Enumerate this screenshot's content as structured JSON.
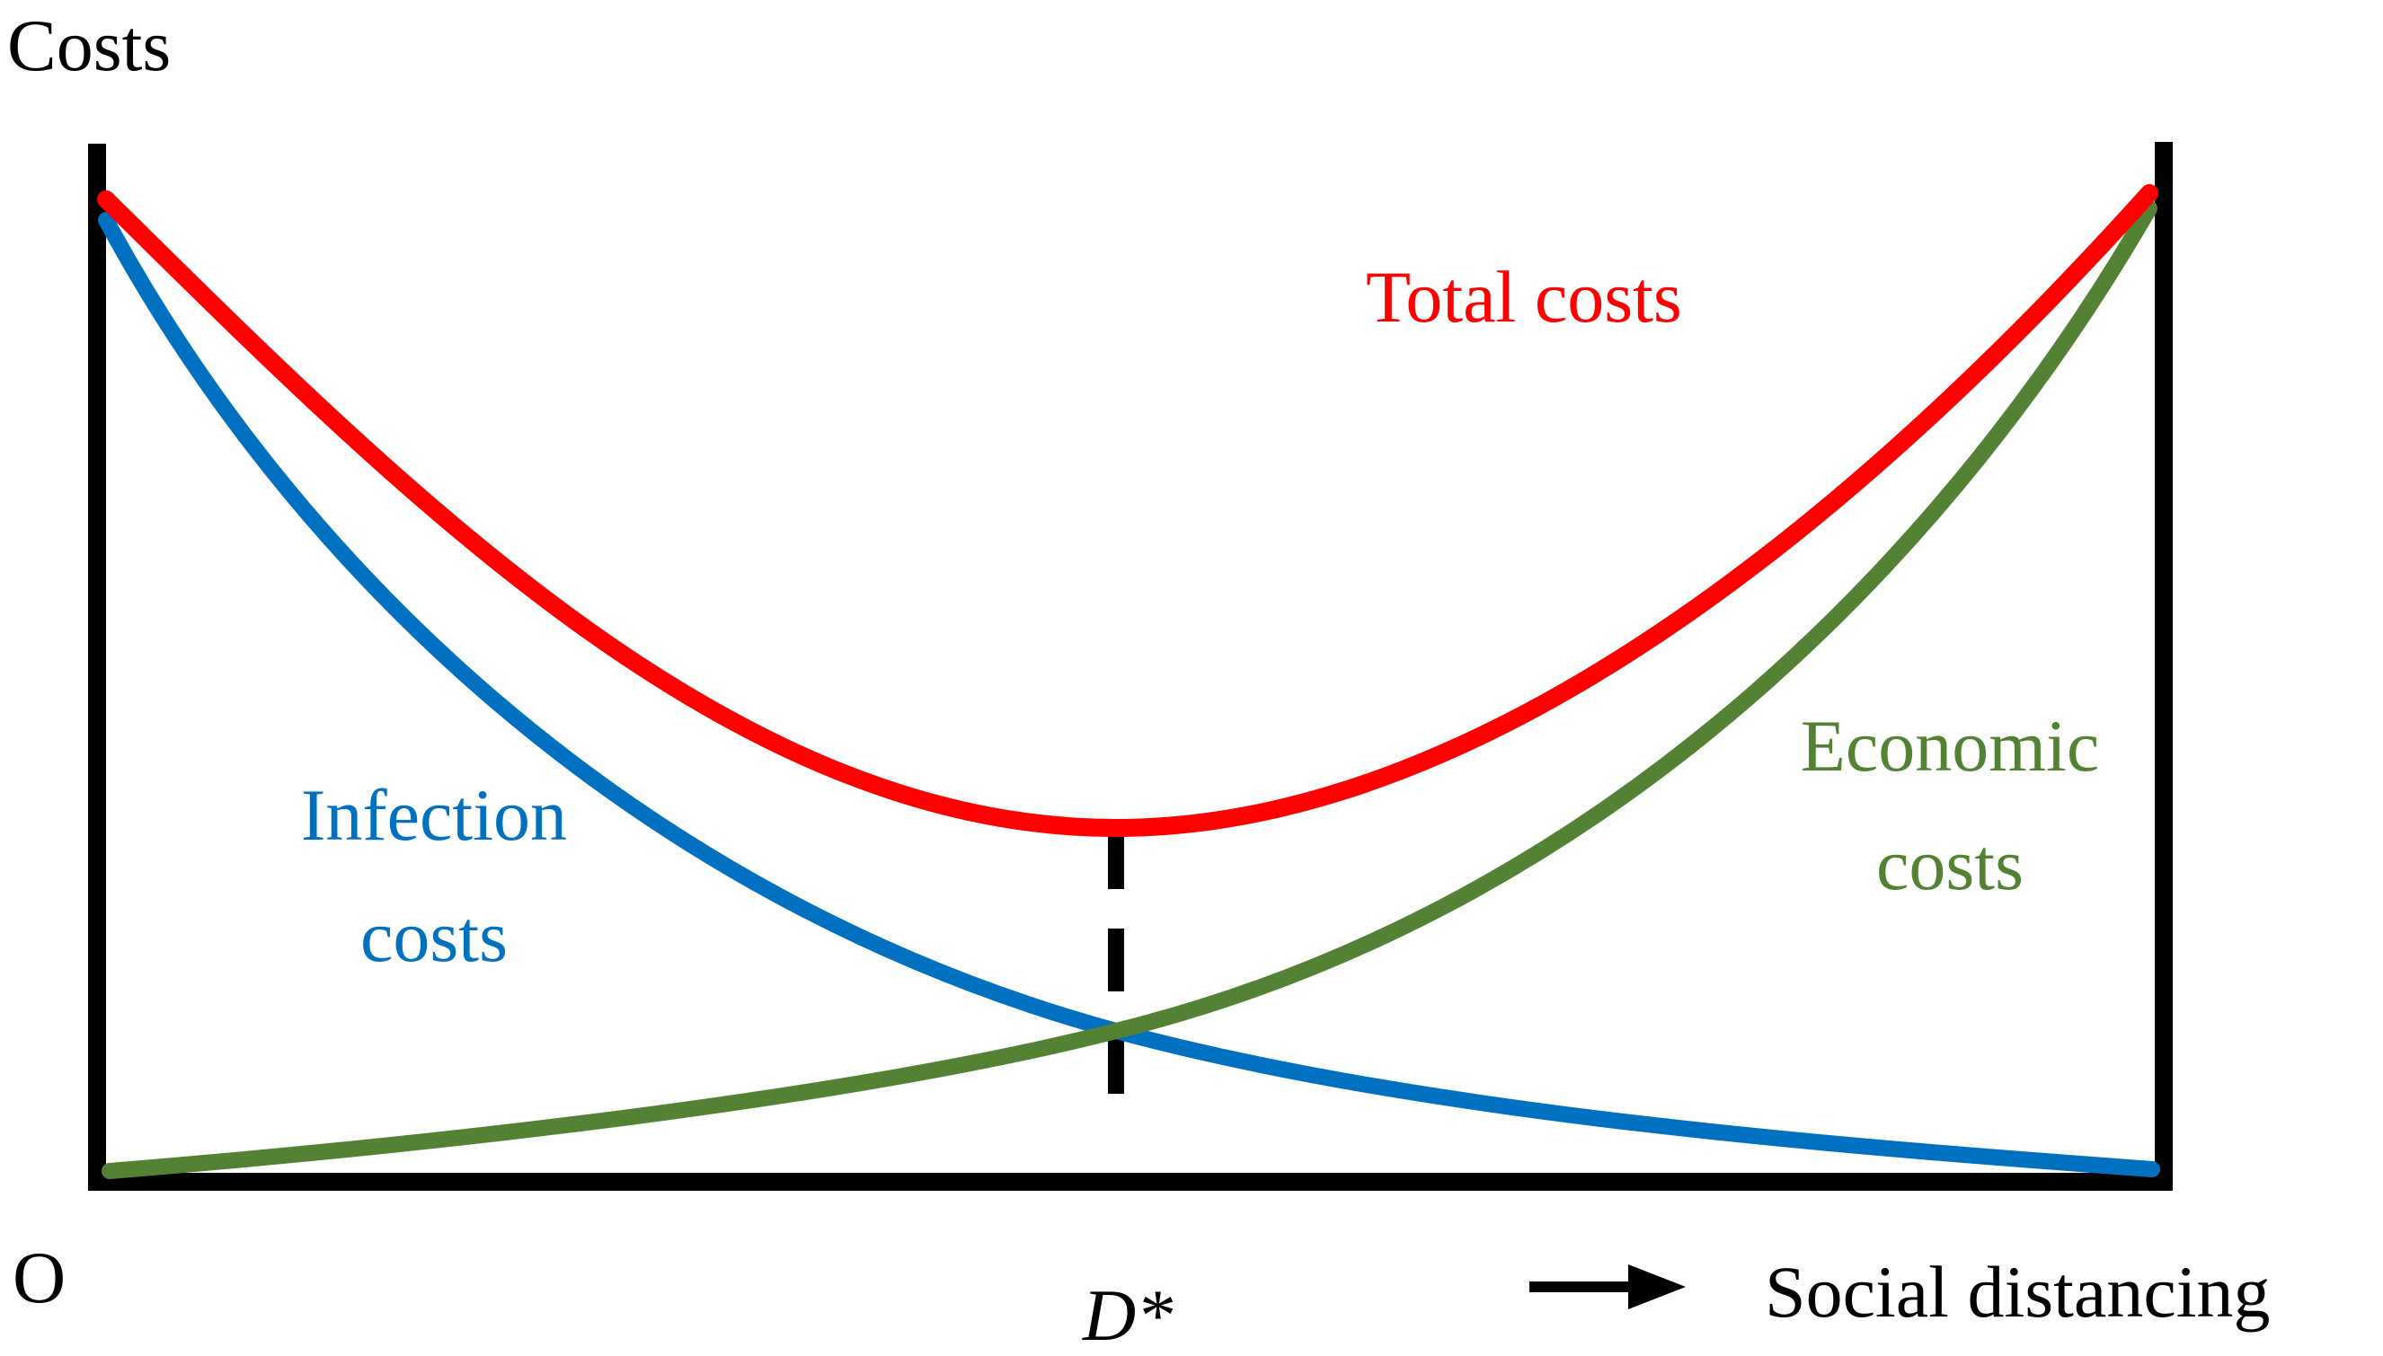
{
  "y_axis_label": "Costs",
  "origin_label": "O",
  "x_axis_label": "Social distancing",
  "optimum_label": "D*",
  "curves": {
    "total": {
      "label": "Total costs",
      "color": "#ff0000"
    },
    "infection": {
      "label_line1": "Infection",
      "label_line2": "costs",
      "color": "#0070c0"
    },
    "economic": {
      "label_line1": "Economic",
      "label_line2": "costs",
      "color": "#548235"
    }
  },
  "axis_color": "#000000",
  "arrow_icon": "right-arrow-icon"
}
